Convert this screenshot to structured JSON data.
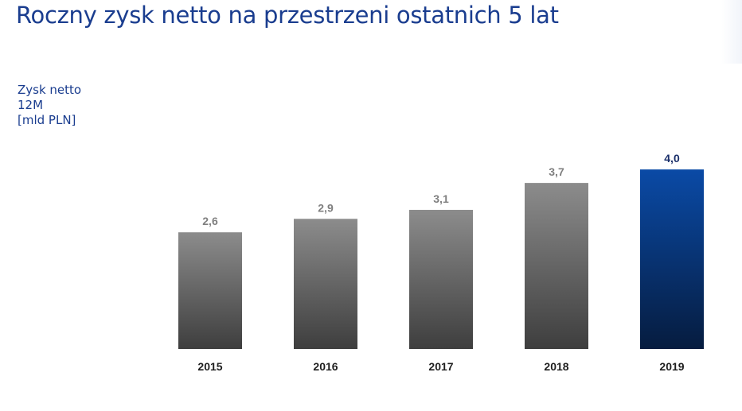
{
  "title": "Roczny zysk netto na przestrzeni ostatnich 5 lat",
  "unit_label": [
    "Zysk netto",
    "12M",
    "[mld PLN]"
  ],
  "colors": {
    "title": "#1a3d8f",
    "bar_gray_top": "#8c8c8c",
    "bar_gray_bottom": "#3e3e3e",
    "bar_highlight_top": "#0a4aa6",
    "bar_highlight_bottom": "#061c3f",
    "label_gray": "#7f7f7f",
    "label_highlight": "#1a2f6a"
  },
  "chart_data": {
    "type": "bar",
    "categories": [
      "2015",
      "2016",
      "2017",
      "2018",
      "2019"
    ],
    "values": [
      2.6,
      2.9,
      3.1,
      3.7,
      4.0
    ],
    "value_labels": [
      "2,6",
      "2,9",
      "3,1",
      "3,7",
      "4,0"
    ],
    "highlight_index": 4,
    "title": "Roczny zysk netto na przestrzeni ostatnich 5 lat",
    "ylabel": "Zysk netto 12M [mld PLN]",
    "xlabel": "",
    "ylim": [
      0,
      4.8
    ],
    "grid": false,
    "legend": "none"
  }
}
